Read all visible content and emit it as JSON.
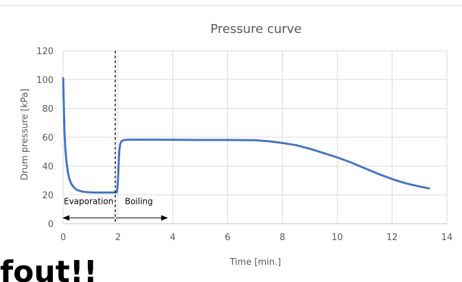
{
  "chart_data": {
    "type": "line",
    "title": "Pressure curve",
    "xlabel": "Time [min.]",
    "ylabel": "Drum pressure  [kPa]",
    "xlim": [
      0,
      14
    ],
    "ylim": [
      0,
      120
    ],
    "xticks": [
      0,
      2,
      4,
      6,
      8,
      10,
      12,
      14
    ],
    "yticks": [
      0,
      20,
      40,
      60,
      80,
      100,
      120
    ],
    "grid": true,
    "legend": "none",
    "colors": {
      "series": "#4472C4",
      "grid": "#d9d9d9",
      "text": "#595959"
    },
    "series": [
      {
        "x": [
          0.0,
          0.02,
          0.05,
          0.08,
          0.12,
          0.17,
          0.22,
          0.3,
          0.4,
          0.5,
          0.6,
          0.7,
          0.8,
          1.0,
          1.2,
          1.4,
          1.6,
          1.8,
          1.95,
          1.97,
          1.99,
          2.01,
          2.03,
          2.05,
          2.08,
          2.12,
          2.18,
          2.3,
          2.5,
          3.0,
          4.0,
          5.0,
          6.0,
          7.0,
          7.5,
          8.0,
          8.5,
          9.0,
          9.5,
          10.0,
          10.5,
          11.0,
          11.5,
          12.0,
          12.5,
          13.0,
          13.35
        ],
        "y": [
          101,
          85,
          63,
          52,
          43,
          36,
          31.5,
          27.5,
          25,
          23.5,
          22.8,
          22.3,
          22,
          21.7,
          21.6,
          21.6,
          21.6,
          21.6,
          21.7,
          23,
          27,
          35,
          44,
          51,
          55,
          57,
          57.8,
          58.2,
          58.3,
          58.3,
          58.2,
          58.1,
          58.1,
          57.9,
          57.2,
          56,
          54.5,
          52,
          49,
          46,
          42.5,
          38.5,
          34.5,
          31,
          28,
          25.8,
          24.5
        ]
      }
    ],
    "annotations": {
      "divider_x": 1.9,
      "evaporation_label": "Evaporation",
      "boiling_label": "Boiling",
      "arrow_y": 4,
      "arrow_x": [
        0,
        3.8
      ]
    }
  },
  "cut_off_text": "fout!!"
}
